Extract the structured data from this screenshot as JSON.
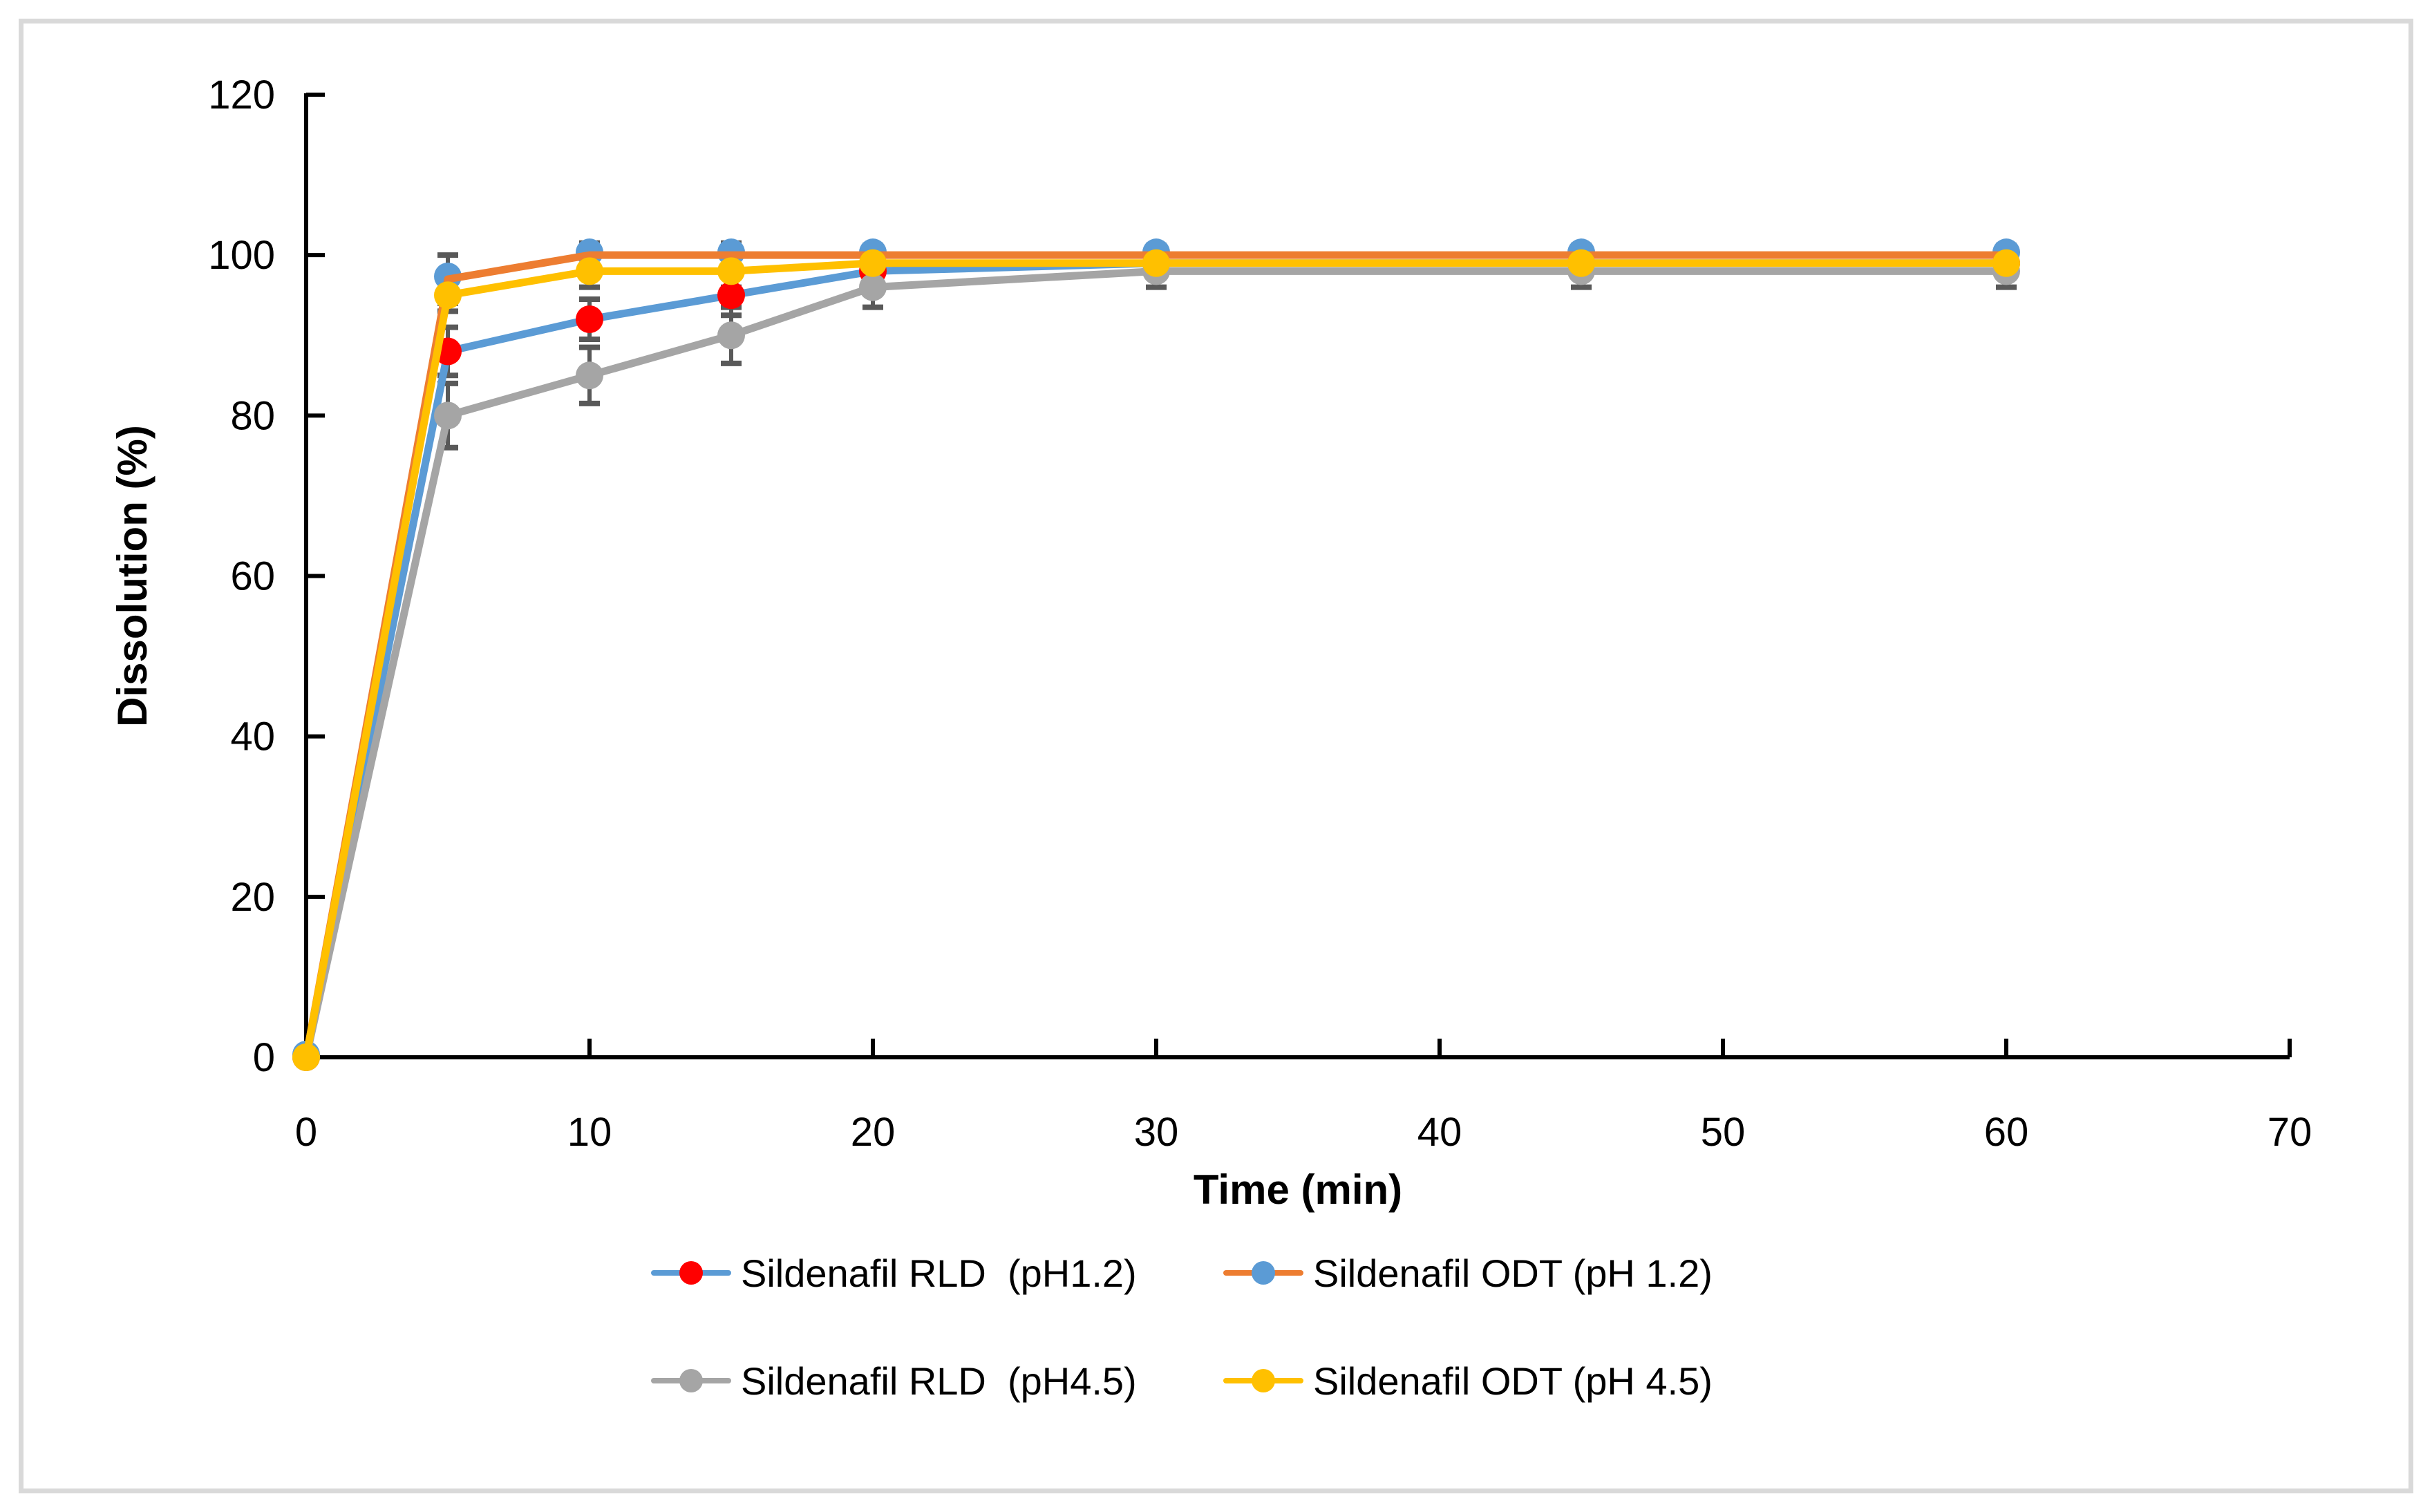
{
  "figure": {
    "background": "#FFFFFF",
    "border_color": "#D9D9D9"
  },
  "chart_data": {
    "type": "line",
    "title": "",
    "xlabel": "Time (min)",
    "ylabel": "Dissolution (%)",
    "x": [
      0,
      5,
      10,
      15,
      20,
      30,
      45,
      60
    ],
    "xlim": [
      0,
      70
    ],
    "ylim": [
      0,
      120
    ],
    "x_ticks": [
      0,
      10,
      20,
      30,
      40,
      50,
      60,
      70
    ],
    "y_ticks": [
      0,
      20,
      40,
      60,
      80,
      100,
      120
    ],
    "grid": false,
    "legend_position": "bottom",
    "axis_color": "#000000",
    "error_bar_color": "#595959",
    "series": [
      {
        "name": "Sildenafil RLD  (pH1.2)",
        "line_color": "#5B9BD5",
        "marker_color": "#FF0000",
        "values": [
          0,
          88,
          92,
          95,
          98,
          99,
          99,
          99
        ],
        "errors": [
          0,
          3,
          2.5,
          2.5,
          1.5,
          1,
          1,
          1
        ]
      },
      {
        "name": "Sildenafil ODT (pH 1.2)",
        "line_color": "#ED7D31",
        "marker_color": "#5B9BD5",
        "values": [
          0,
          97,
          100,
          100,
          100,
          100,
          100,
          100
        ],
        "errors": [
          0,
          3,
          1.5,
          1.5,
          1.2,
          1.2,
          1.2,
          1.2
        ],
        "marker_behind_line": true
      },
      {
        "name": "Sildenafil RLD  (pH4.5)",
        "line_color": "#A5A5A5",
        "marker_color": "#A5A5A5",
        "values": [
          0,
          80,
          85,
          90,
          96,
          98,
          98,
          98
        ],
        "errors": [
          0,
          4,
          3.5,
          3.5,
          2.5,
          2,
          2,
          2
        ]
      },
      {
        "name": "Sildenafil ODT (pH 4.5)",
        "line_color": "#FFC000",
        "marker_color": "#FFC000",
        "values": [
          0,
          95,
          98,
          98,
          99,
          99,
          99,
          99
        ],
        "errors": [
          0,
          2,
          2,
          2,
          1.5,
          1,
          1,
          1
        ]
      }
    ]
  }
}
